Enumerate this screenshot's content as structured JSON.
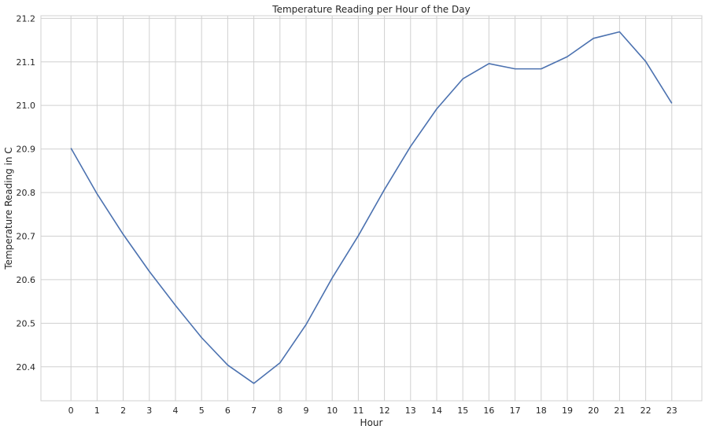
{
  "chart_data": {
    "type": "line",
    "title": "Temperature Reading per Hour of the Day",
    "xlabel": "Hour",
    "ylabel": "Temperature Reading in C",
    "x": [
      0,
      1,
      2,
      3,
      4,
      5,
      6,
      7,
      8,
      9,
      10,
      11,
      12,
      13,
      14,
      15,
      16,
      17,
      18,
      19,
      20,
      21,
      22,
      23
    ],
    "series": [
      {
        "values": [
          20.902,
          20.797,
          20.704,
          20.619,
          20.541,
          20.467,
          20.404,
          20.362,
          20.409,
          20.497,
          20.604,
          20.701,
          20.807,
          20.906,
          20.992,
          21.061,
          21.096,
          21.084,
          21.084,
          21.112,
          21.154,
          21.169,
          21.101,
          21.005
        ],
        "color": "#4c72b0"
      }
    ],
    "xlim": [
      -1.15,
      24.15
    ],
    "ylim": [
      20.322,
      21.206
    ],
    "yticks": [
      "20.4",
      "20.5",
      "20.6",
      "20.7",
      "20.8",
      "20.9",
      "21.0",
      "21.1",
      "21.2"
    ],
    "xticks": [
      "0",
      "1",
      "2",
      "3",
      "4",
      "5",
      "6",
      "7",
      "8",
      "9",
      "10",
      "11",
      "12",
      "13",
      "14",
      "15",
      "16",
      "17",
      "18",
      "19",
      "20",
      "21",
      "22",
      "23"
    ],
    "grid": true
  }
}
